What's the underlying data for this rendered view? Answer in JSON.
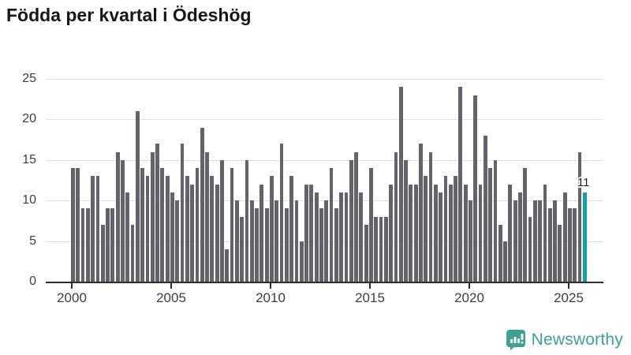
{
  "title": "Födda per kvartal i Ödeshög",
  "branding": {
    "logo_text": "Newsworthy",
    "logo_color": "#3da294"
  },
  "chart_data": {
    "type": "bar",
    "title": "Födda per kvartal i Ödeshög",
    "period": "quarterly",
    "start_quarter": "2000Q1",
    "end_quarter": "2025Q4",
    "values": [
      14,
      14,
      9,
      9,
      13,
      13,
      7,
      9,
      9,
      16,
      15,
      11,
      7,
      21,
      14,
      13,
      16,
      17,
      14,
      13,
      11,
      10,
      17,
      13,
      12,
      14,
      19,
      16,
      13,
      12,
      15,
      4,
      14,
      10,
      8,
      15,
      10,
      9,
      12,
      9,
      13,
      10,
      17,
      9,
      13,
      10,
      5,
      12,
      12,
      11,
      9,
      10,
      14,
      9,
      11,
      11,
      15,
      16,
      11,
      7,
      14,
      8,
      8,
      8,
      12,
      16,
      24,
      15,
      12,
      12,
      17,
      13,
      16,
      12,
      11,
      13,
      12,
      13,
      24,
      12,
      10,
      23,
      12,
      18,
      14,
      15,
      7,
      5,
      12,
      10,
      11,
      14,
      8,
      10,
      10,
      12,
      9,
      10,
      7,
      11,
      9,
      9,
      16,
      11
    ],
    "x_tick_labels": [
      "2000",
      "2005",
      "2010",
      "2015",
      "2020",
      "2025"
    ],
    "y_ticks": [
      0,
      5,
      10,
      15,
      20,
      25
    ],
    "ylim": [
      0,
      25.8
    ],
    "grid": true,
    "legend": "none",
    "bar_color": "#63636b",
    "highlight_color": "#0aa2a2",
    "highlight_last": true,
    "last_value_label": "11"
  }
}
